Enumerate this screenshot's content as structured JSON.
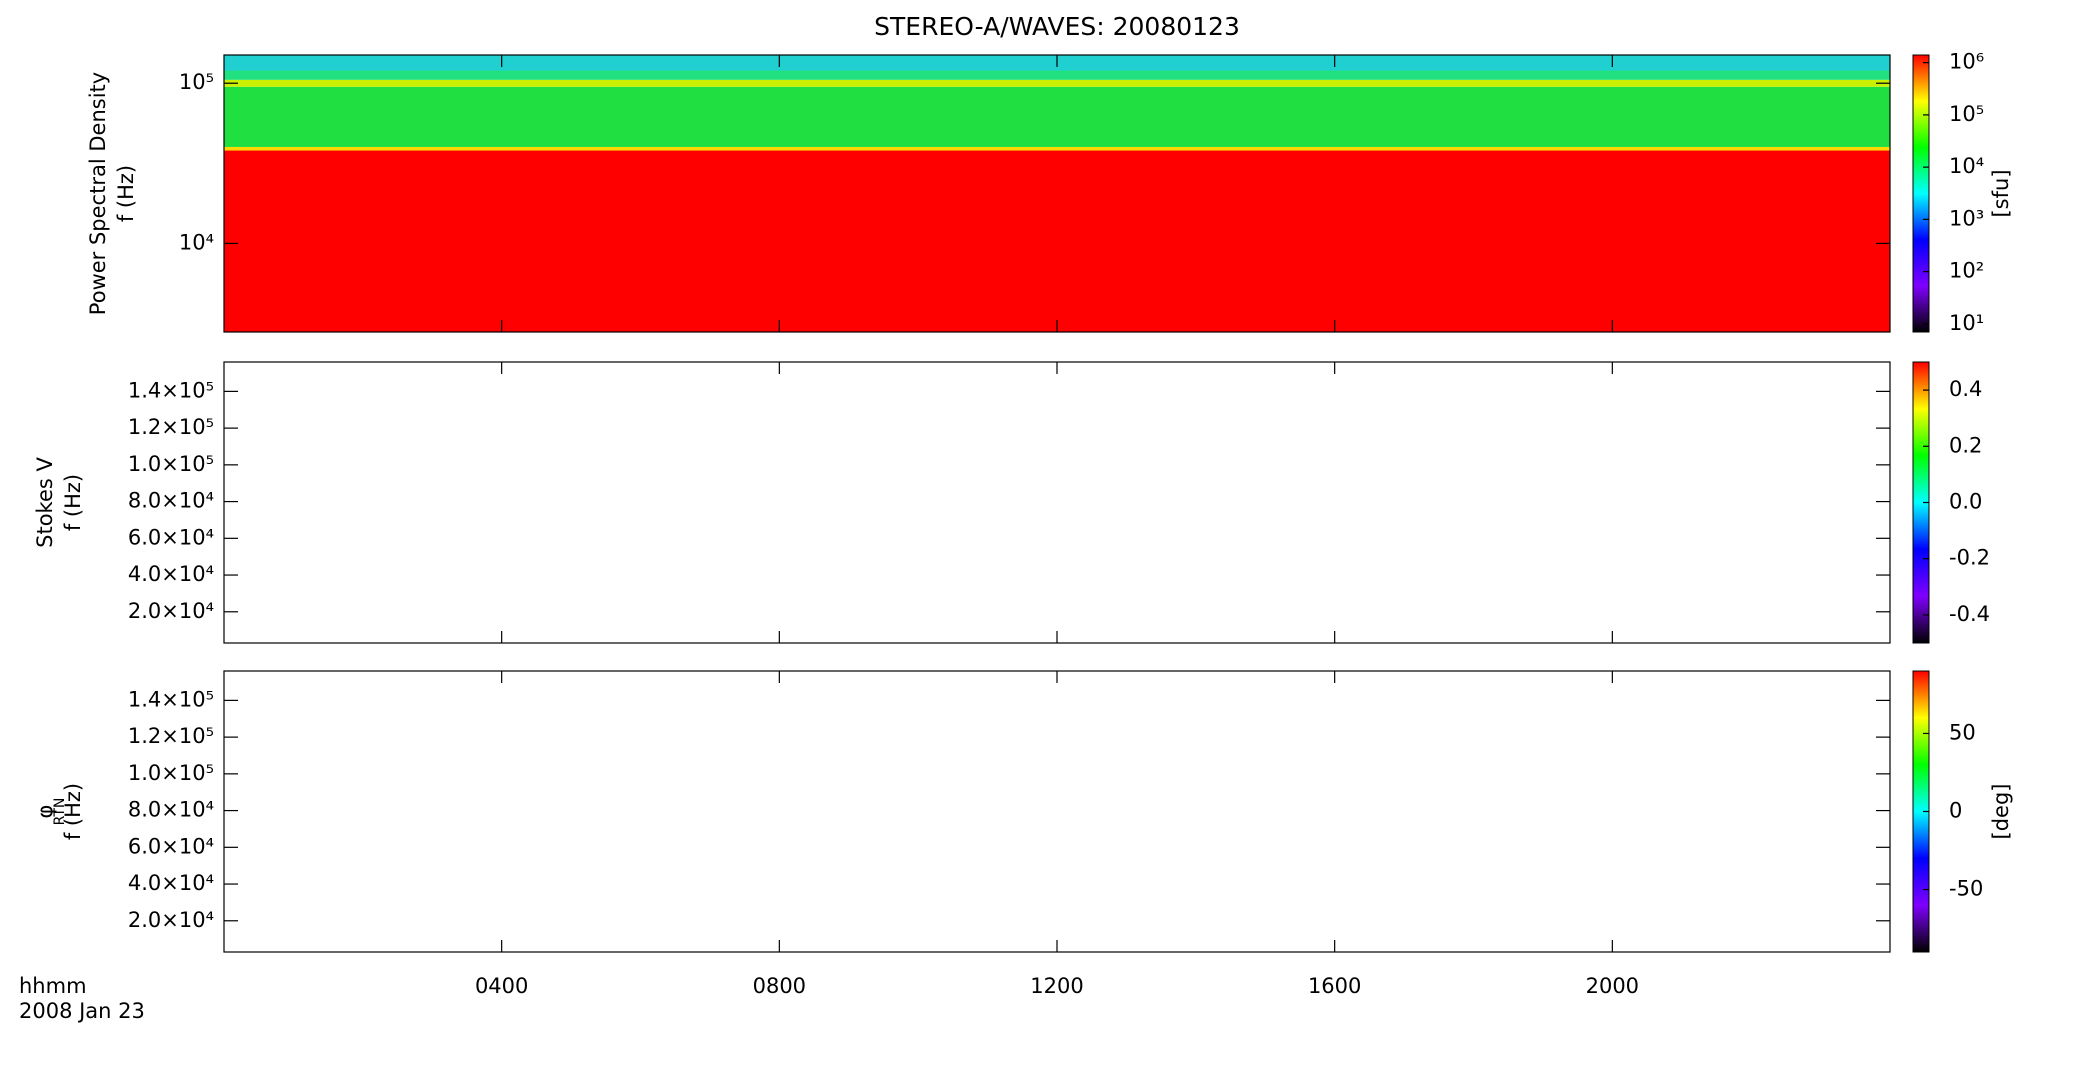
{
  "title": "STEREO-A/WAVES: 20080123",
  "x_label": "hhmm",
  "date_label": "2008 Jan 23",
  "xlim": [
    0,
    24
  ],
  "xticks": [
    {
      "value": 4,
      "label": "0400"
    },
    {
      "value": 8,
      "label": "0800"
    },
    {
      "value": 12,
      "label": "1200"
    },
    {
      "value": 16,
      "label": "1600"
    },
    {
      "value": 20,
      "label": "2000"
    }
  ],
  "colormap": [
    "#000000",
    "#7f00ff",
    "#0000ff",
    "#00ffff",
    "#00ff00",
    "#ffff00",
    "#ff0000"
  ],
  "chart_data": [
    {
      "type": "heatmap",
      "ylabel": [
        "Power Spectral Density",
        "f (Hz)"
      ],
      "yscale": "log",
      "ylim": [
        2800,
        150000
      ],
      "yticks": [
        {
          "value": 10000,
          "label": "10⁴"
        },
        {
          "value": 100000,
          "label": "10⁵"
        }
      ],
      "bands": [
        {
          "from": 2800,
          "to": 38000,
          "color": "#ff0000"
        },
        {
          "from": 38000,
          "to": 40000,
          "color": "#ffd800"
        },
        {
          "from": 40000,
          "to": 95000,
          "color": "#1fe040"
        },
        {
          "from": 95000,
          "to": 105000,
          "color": "#c8f000"
        },
        {
          "from": 105000,
          "to": 120000,
          "color": "#20e080"
        },
        {
          "from": 120000,
          "to": 150000,
          "color": "#20d0d0"
        }
      ],
      "colorbar": {
        "scale": "log",
        "lim": [
          7,
          1400000
        ],
        "label": "[sfu]",
        "ticks": [
          {
            "value": 10,
            "label": "10¹"
          },
          {
            "value": 100,
            "label": "10²"
          },
          {
            "value": 1000,
            "label": "10³"
          },
          {
            "value": 10000,
            "label": "10⁴"
          },
          {
            "value": 100000,
            "label": "10⁵"
          },
          {
            "value": 1000000,
            "label": "10⁶"
          }
        ]
      }
    },
    {
      "type": "heatmap",
      "ylabel": [
        "Stokes V",
        "f (Hz)"
      ],
      "yscale": "linear",
      "ylim": [
        3000,
        156000
      ],
      "yticks": [
        {
          "value": 20000,
          "label": "2.0×10⁴"
        },
        {
          "value": 40000,
          "label": "4.0×10⁴"
        },
        {
          "value": 60000,
          "label": "6.0×10⁴"
        },
        {
          "value": 80000,
          "label": "8.0×10⁴"
        },
        {
          "value": 100000,
          "label": "1.0×10⁵"
        },
        {
          "value": 120000,
          "label": "1.2×10⁵"
        },
        {
          "value": 140000,
          "label": "1.4×10⁵"
        }
      ],
      "colorbar": {
        "scale": "linear",
        "lim": [
          -0.5,
          0.5
        ],
        "ticks": [
          -0.4,
          -0.2,
          {
            "value": 0,
            "label": "0.0"
          },
          0.2,
          0.4
        ]
      }
    },
    {
      "type": "heatmap",
      "ylabel": [
        "φ",
        "f (Hz)"
      ],
      "ylabel_sub": "RTN",
      "yscale": "linear",
      "ylim": [
        3000,
        156000
      ],
      "yticks": [
        {
          "value": 20000,
          "label": "2.0×10⁴"
        },
        {
          "value": 40000,
          "label": "4.0×10⁴"
        },
        {
          "value": 60000,
          "label": "6.0×10⁴"
        },
        {
          "value": 80000,
          "label": "8.0×10⁴"
        },
        {
          "value": 100000,
          "label": "1.0×10⁵"
        },
        {
          "value": 120000,
          "label": "1.2×10⁵"
        },
        {
          "value": 140000,
          "label": "1.4×10⁵"
        }
      ],
      "colorbar": {
        "scale": "linear",
        "lim": [
          -90,
          90
        ],
        "label": "[deg]",
        "ticks": [
          -50,
          0,
          50
        ]
      }
    }
  ]
}
